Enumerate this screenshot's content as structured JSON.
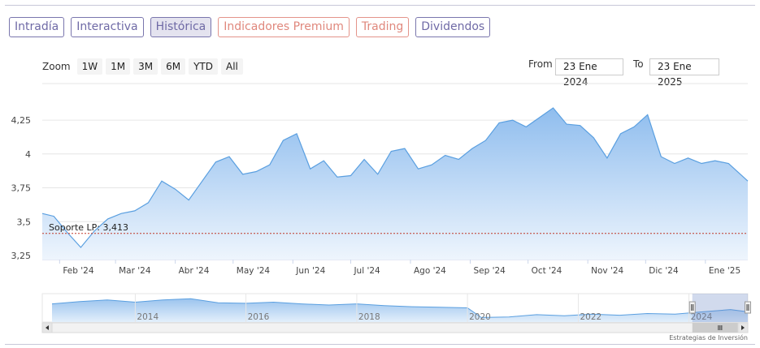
{
  "tabs": [
    {
      "label": "Intradía",
      "active": false,
      "premium": false
    },
    {
      "label": "Interactiva",
      "active": false,
      "premium": false
    },
    {
      "label": "Histórica",
      "active": true,
      "premium": false
    },
    {
      "label": "Indicadores Premium",
      "active": false,
      "premium": true
    },
    {
      "label": "Trading",
      "active": false,
      "premium": true
    },
    {
      "label": "Dividendos",
      "active": false,
      "premium": false
    }
  ],
  "zoom": {
    "label": "Zoom",
    "buttons": [
      "1W",
      "1M",
      "3M",
      "6M",
      "YTD",
      "All"
    ]
  },
  "range": {
    "from_label": "From",
    "from_value": "23 Ene 2024",
    "to_label": "To",
    "to_value": "23 Ene 2025"
  },
  "credits": "Estrategias de Inversión",
  "colors": {
    "line": "#5a9fe0",
    "fill_top": "#8fbdee",
    "fill_bottom": "#eef5fd",
    "support": "#c0392b",
    "tab": "#7a76ad",
    "premium_tab": "#e4948a"
  },
  "chart_data": {
    "type": "area",
    "x": [
      "2024-01-23",
      "2024-01-29",
      "2024-02-05",
      "2024-02-12",
      "2024-02-19",
      "2024-02-26",
      "2024-03-04",
      "2024-03-11",
      "2024-03-18",
      "2024-03-25",
      "2024-04-01",
      "2024-04-08",
      "2024-04-15",
      "2024-04-22",
      "2024-04-29",
      "2024-05-06",
      "2024-05-13",
      "2024-05-20",
      "2024-05-27",
      "2024-06-03",
      "2024-06-10",
      "2024-06-17",
      "2024-06-24",
      "2024-07-01",
      "2024-07-08",
      "2024-07-15",
      "2024-07-22",
      "2024-07-29",
      "2024-08-05",
      "2024-08-12",
      "2024-08-19",
      "2024-08-26",
      "2024-09-02",
      "2024-09-09",
      "2024-09-16",
      "2024-09-23",
      "2024-09-30",
      "2024-10-07",
      "2024-10-14",
      "2024-10-21",
      "2024-10-28",
      "2024-11-04",
      "2024-11-11",
      "2024-11-18",
      "2024-11-25",
      "2024-12-02",
      "2024-12-09",
      "2024-12-16",
      "2024-12-23",
      "2024-12-30",
      "2025-01-06",
      "2025-01-13",
      "2025-01-23"
    ],
    "values": [
      3.56,
      3.54,
      3.42,
      3.31,
      3.43,
      3.52,
      3.56,
      3.58,
      3.64,
      3.8,
      3.74,
      3.66,
      3.8,
      3.94,
      3.98,
      3.85,
      3.87,
      3.92,
      4.1,
      4.15,
      3.89,
      3.95,
      3.83,
      3.84,
      3.96,
      3.85,
      4.02,
      4.04,
      3.89,
      3.92,
      3.99,
      3.96,
      4.04,
      4.1,
      4.23,
      4.25,
      4.2,
      4.27,
      4.34,
      4.22,
      4.21,
      4.12,
      3.97,
      4.15,
      4.2,
      4.29,
      3.98,
      3.93,
      3.97,
      3.93,
      3.95,
      3.93,
      3.8
    ],
    "yticks": [
      "3,25",
      "3,5",
      "3,75",
      "4",
      "4,25"
    ],
    "ytick_values": [
      3.25,
      3.5,
      3.75,
      4,
      4.25
    ],
    "ylim": [
      3.22,
      4.52
    ],
    "xticks": [
      "Feb '24",
      "Mar '24",
      "Abr '24",
      "May '24",
      "Jun '24",
      "Jul '24",
      "Ago '24",
      "Sep '24",
      "Oct '24",
      "Nov '24",
      "Dic '24",
      "Ene '25"
    ],
    "xtick_dates": [
      "2024-02-01",
      "2024-03-01",
      "2024-04-01",
      "2024-05-01",
      "2024-06-01",
      "2024-07-01",
      "2024-08-01",
      "2024-09-01",
      "2024-10-01",
      "2024-11-01",
      "2024-12-01",
      "2025-01-01"
    ],
    "support": {
      "label": "Soporte LP: 3,413",
      "value": 3.413
    },
    "navigator": {
      "years": [
        "2014",
        "2016",
        "2018",
        "2020",
        "2022",
        "2024"
      ],
      "year_dates": [
        "2014-01-01",
        "2016-01-01",
        "2018-01-01",
        "2020-01-01",
        "2022-01-01",
        "2024-01-01"
      ],
      "range_start": "2012-07-01",
      "range_end": "2025-01-23",
      "selected": [
        "2024-01-23",
        "2025-01-23"
      ],
      "dates": [
        "2012-07-01",
        "2013-01-01",
        "2013-07-01",
        "2014-01-01",
        "2014-07-01",
        "2015-01-01",
        "2015-07-01",
        "2016-01-01",
        "2016-07-01",
        "2017-01-01",
        "2017-07-01",
        "2018-01-01",
        "2018-07-01",
        "2019-01-01",
        "2019-07-01",
        "2020-01-01",
        "2020-04-01",
        "2020-10-01",
        "2021-04-01",
        "2021-10-01",
        "2022-04-01",
        "2022-10-01",
        "2023-04-01",
        "2023-10-01",
        "2024-04-01",
        "2024-10-01",
        "2025-01-23"
      ],
      "values": [
        5.2,
        5.6,
        5.9,
        5.5,
        5.9,
        6.1,
        5.4,
        5.3,
        5.5,
        5.2,
        5.0,
        5.2,
        4.9,
        4.7,
        4.6,
        4.5,
        2.8,
        2.9,
        3.3,
        3.1,
        3.4,
        3.2,
        3.5,
        3.4,
        3.8,
        4.2,
        3.8
      ]
    }
  }
}
